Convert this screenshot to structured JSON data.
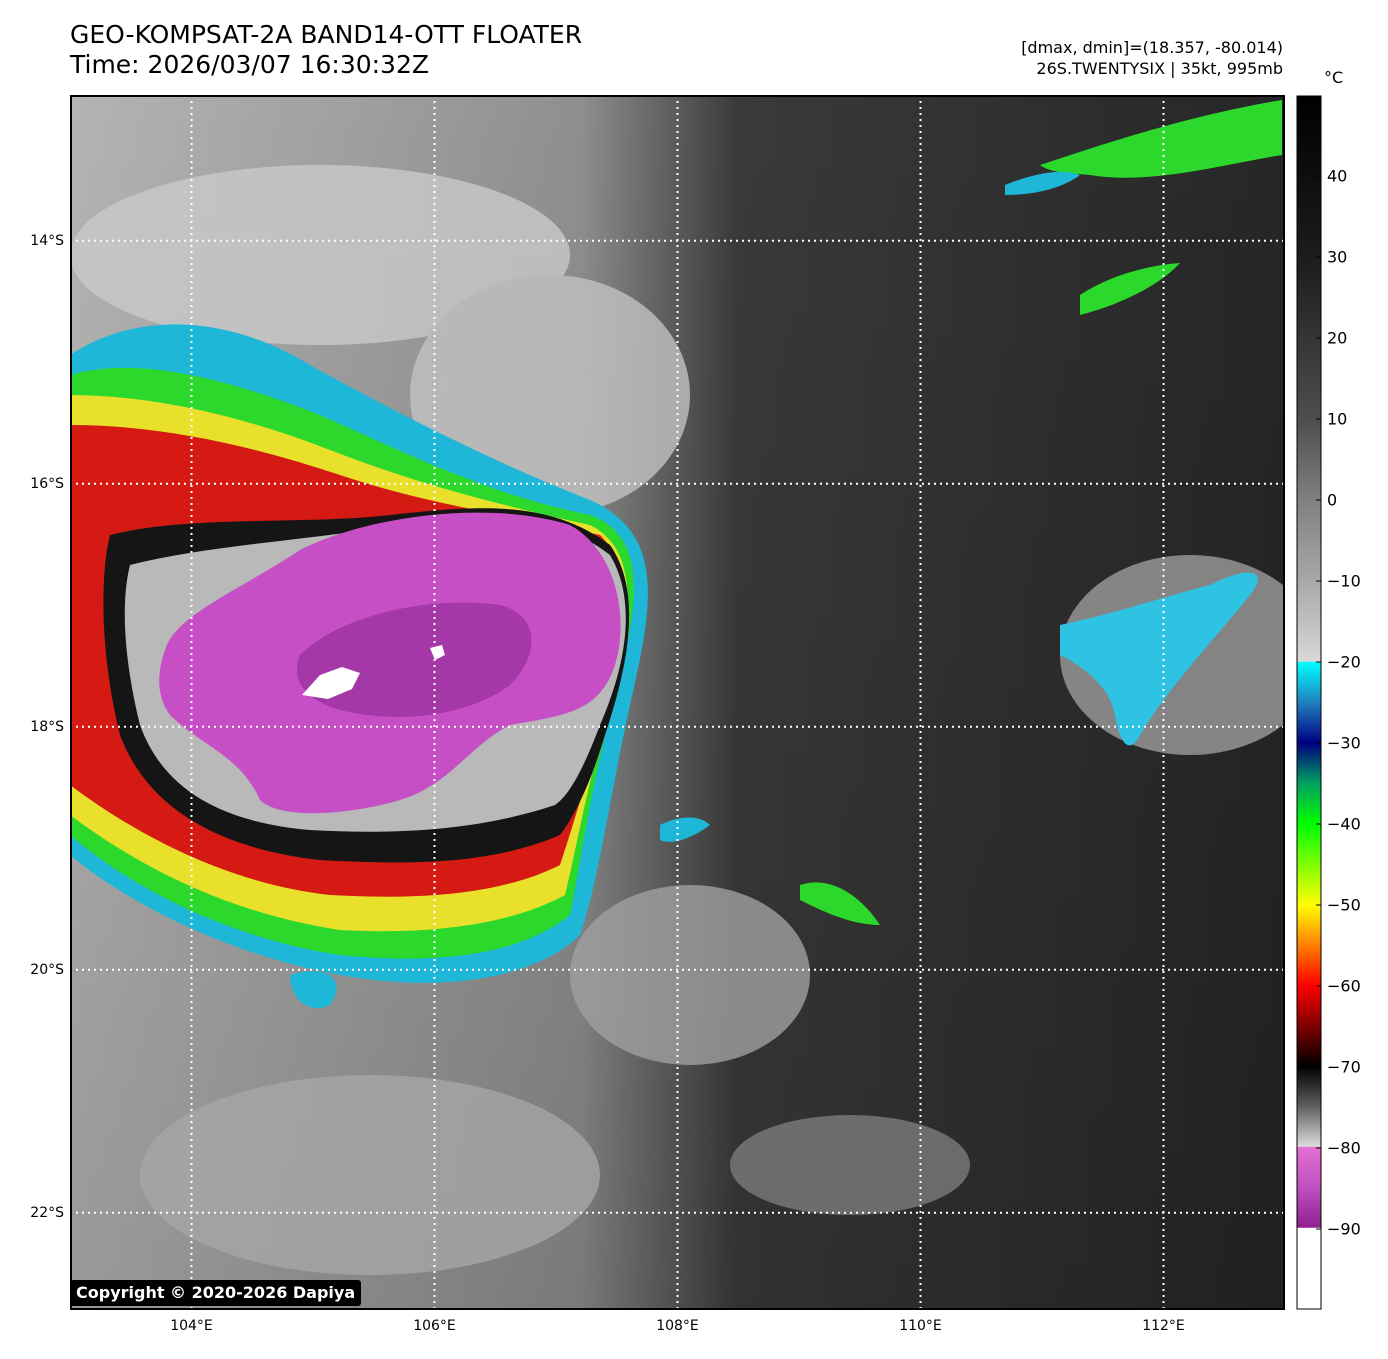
{
  "header": {
    "title_line1": "GEO-KOMPSAT-2A BAND14-OTT FLOATER",
    "title_line2": "Time: 2026/03/07 16:30:32Z",
    "dmax_dmin": "[dmax, dmin]=(18.357, -80.014)",
    "storm_info": "26S.TWENTYSIX | 35kt, 995mb"
  },
  "map": {
    "lon_range": [
      103.0,
      113.0
    ],
    "lat_range": [
      -22.8,
      -12.8
    ],
    "lat_labels": [
      {
        "lat": -14,
        "text": "14°S"
      },
      {
        "lat": -16,
        "text": "16°S"
      },
      {
        "lat": -18,
        "text": "18°S"
      },
      {
        "lat": -20,
        "text": "20°S"
      },
      {
        "lat": -22,
        "text": "22°S"
      }
    ],
    "lon_labels": [
      {
        "lon": 104,
        "text": "104°E"
      },
      {
        "lon": 106,
        "text": "106°E"
      },
      {
        "lon": 108,
        "text": "108°E"
      },
      {
        "lon": 110,
        "text": "110°E"
      },
      {
        "lon": 112,
        "text": "112°E"
      }
    ],
    "grid": "dotted white",
    "copyright": "Copyright © 2020-2026 Dapiya"
  },
  "colorbar": {
    "unit": "°C",
    "range": [
      -100,
      50
    ],
    "ticks": [
      {
        "value": 40,
        "text": "40"
      },
      {
        "value": 30,
        "text": "30"
      },
      {
        "value": 20,
        "text": "20"
      },
      {
        "value": 10,
        "text": "10"
      },
      {
        "value": 0,
        "text": "0"
      },
      {
        "value": -10,
        "text": "−10"
      },
      {
        "value": -20,
        "text": "−20"
      },
      {
        "value": -30,
        "text": "−30"
      },
      {
        "value": -40,
        "text": "−40"
      },
      {
        "value": -50,
        "text": "−50"
      },
      {
        "value": -60,
        "text": "−60"
      },
      {
        "value": -70,
        "text": "−70"
      },
      {
        "value": -80,
        "text": "−80"
      },
      {
        "value": -90,
        "text": "−90"
      }
    ]
  }
}
